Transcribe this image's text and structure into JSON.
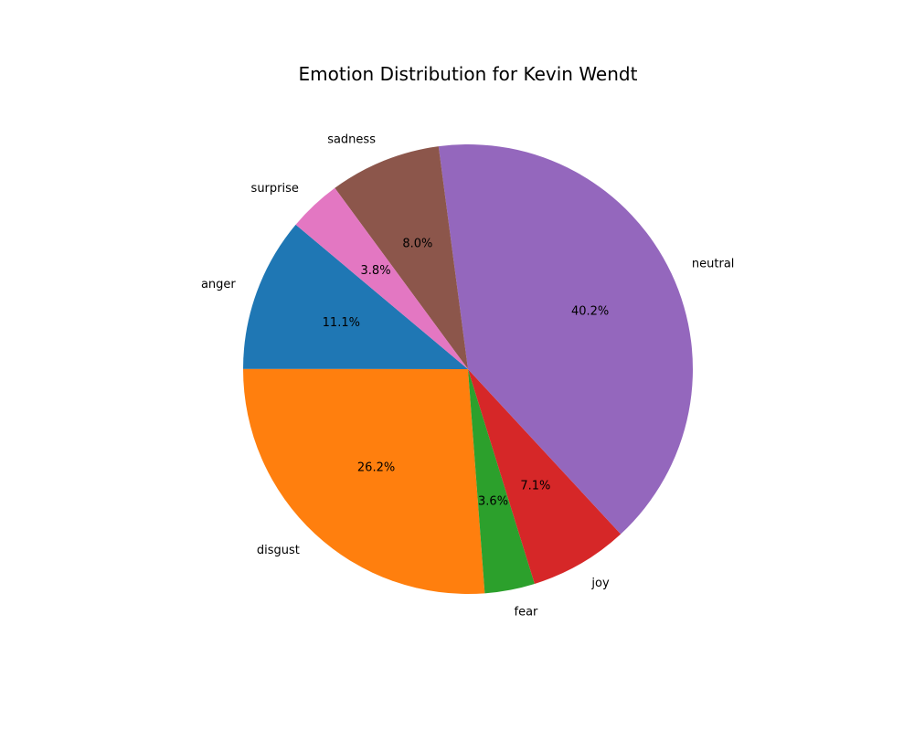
{
  "chart_data": {
    "type": "pie",
    "title": "Emotion Distribution for Kevin Wendt",
    "slices": [
      {
        "label": "anger",
        "value": 11.1,
        "display": "11.1%",
        "color": "#1f77b4"
      },
      {
        "label": "disgust",
        "value": 26.2,
        "display": "26.2%",
        "color": "#ff7f0e"
      },
      {
        "label": "fear",
        "value": 3.6,
        "display": "3.6%",
        "color": "#2ca02c"
      },
      {
        "label": "joy",
        "value": 7.1,
        "display": "7.1%",
        "color": "#d62728"
      },
      {
        "label": "neutral",
        "value": 40.2,
        "display": "40.2%",
        "color": "#9467bd"
      },
      {
        "label": "sadness",
        "value": 8.0,
        "display": "8.0%",
        "color": "#8c564b"
      },
      {
        "label": "surprise",
        "value": 3.8,
        "display": "3.8%",
        "color": "#e377c2"
      }
    ],
    "start_angle_deg": 140,
    "direction": "counterclockwise",
    "legend": "none"
  }
}
